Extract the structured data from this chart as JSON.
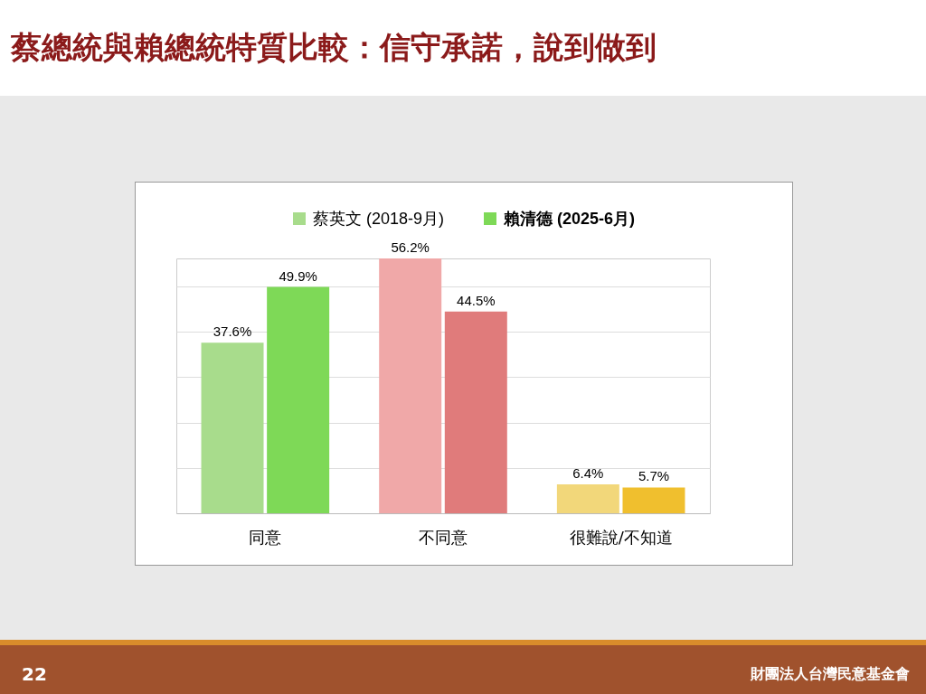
{
  "chart_data": {
    "type": "bar",
    "title": "蔡總統與賴總統特質比較：信守承諾，說到做到",
    "categories": [
      "同意",
      "不同意",
      "很難說/不知道"
    ],
    "series": [
      {
        "name": "蔡英文 (2018-9月)",
        "color": "#a8dc8c",
        "colors": [
          "#a8dc8c",
          "#f0a8a8",
          "#f2d77a"
        ],
        "values": [
          37.6,
          56.2,
          6.4
        ],
        "value_labels": [
          "37.6%",
          "56.2%",
          "6.4%"
        ]
      },
      {
        "name": "賴清德 (2025-6月)",
        "color": "#7ed957",
        "colors": [
          "#7ed957",
          "#e07b7b",
          "#f0bf2e"
        ],
        "values": [
          49.9,
          44.5,
          5.7
        ],
        "value_labels": [
          "49.9%",
          "44.5%",
          "5.7%"
        ]
      }
    ],
    "tick_labels": "x",
    "grid": "y",
    "legend": "top",
    "annotations": [
      "22",
      "財團法人台灣民意基金會"
    ]
  }
}
